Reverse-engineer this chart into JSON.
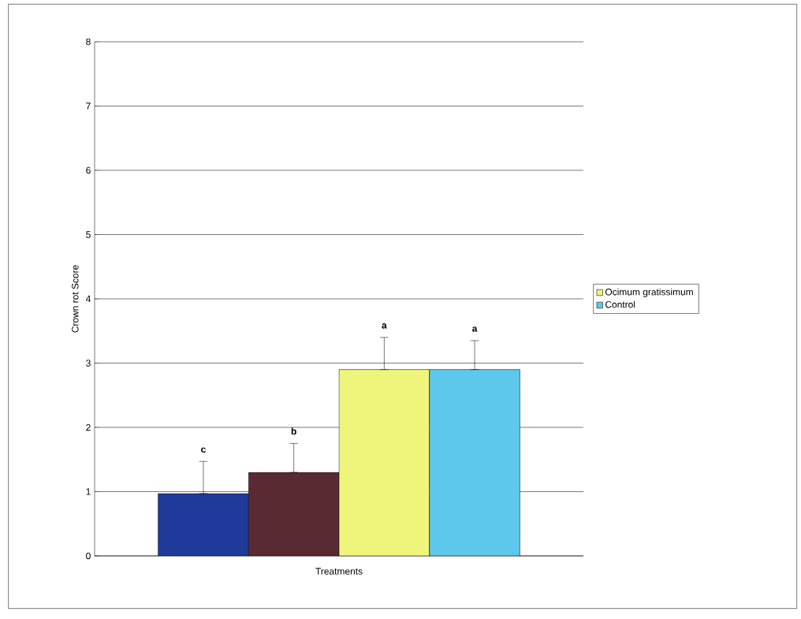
{
  "chart_data": {
    "type": "bar",
    "xlabel": "Treatments",
    "ylabel": "Crown rot Score",
    "categories": [
      null
    ],
    "series": [
      {
        "color": "#1f3a9a",
        "values": [
          0.97
        ],
        "errors": [
          [
            0.97,
            1.47
          ]
        ]
      },
      {
        "color": "#5a2a33",
        "values": [
          1.3
        ],
        "errors": [
          [
            1.3,
            1.75
          ]
        ]
      },
      {
        "name": "Ocimum gratissimum",
        "color": "#eef57a",
        "values": [
          2.9
        ],
        "errors": [
          [
            2.9,
            3.4
          ]
        ]
      },
      {
        "name": "Control",
        "color": "#5ec8ec",
        "values": [
          2.9
        ],
        "errors": [
          [
            2.9,
            3.35
          ]
        ]
      }
    ],
    "annotations": [
      "c",
      "b",
      "a",
      "a"
    ],
    "ylim": [
      0,
      8
    ],
    "yticks": [
      0,
      1,
      2,
      3,
      4,
      5,
      6,
      7,
      8
    ],
    "grid": "y",
    "legend": "right"
  }
}
